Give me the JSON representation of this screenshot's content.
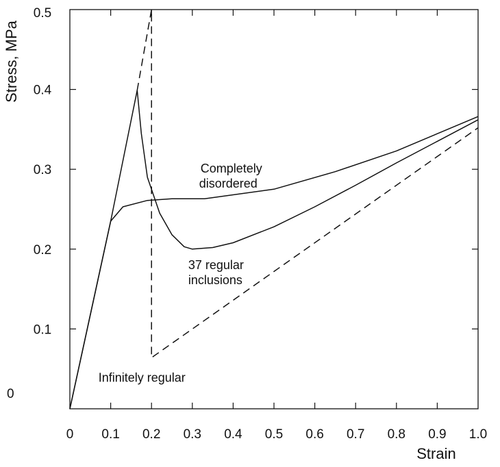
{
  "chart_data": {
    "type": "line",
    "xlabel": "Strain",
    "ylabel": "Stress, MPa",
    "xlim": [
      0,
      1.0
    ],
    "ylim": [
      0,
      0.5
    ],
    "x_ticks": [
      "0",
      "0.1",
      "0.2",
      "0.3",
      "0.4",
      "0.5",
      "0.6",
      "0.7",
      "0.8",
      "0.9",
      "1.0"
    ],
    "y_ticks": [
      "0",
      "0.1",
      "0.2",
      "0.3",
      "0.4",
      "0.5"
    ],
    "grid": false,
    "legend": "none",
    "series": [
      {
        "name": "Completely disordered",
        "style": "solid",
        "x": [
          0,
          0.1,
          0.13,
          0.19,
          0.25,
          0.33,
          0.5,
          0.65,
          0.8,
          1.0
        ],
        "y": [
          0,
          0.235,
          0.253,
          0.261,
          0.263,
          0.263,
          0.275,
          0.297,
          0.323,
          0.366
        ]
      },
      {
        "name": "37 regular inclusions",
        "style": "solid",
        "x": [
          0,
          0.1,
          0.165,
          0.175,
          0.19,
          0.22,
          0.25,
          0.28,
          0.3,
          0.35,
          0.4,
          0.5,
          0.6,
          0.7,
          0.8,
          0.9,
          1.0
        ],
        "y": [
          0,
          0.235,
          0.399,
          0.345,
          0.29,
          0.245,
          0.218,
          0.203,
          0.2,
          0.202,
          0.208,
          0.228,
          0.253,
          0.28,
          0.308,
          0.335,
          0.362
        ]
      },
      {
        "name": "Infinitely regular",
        "style": "dashed",
        "x": [
          0.165,
          0.2,
          0.2,
          1.0
        ],
        "y": [
          0.399,
          0.5,
          0.064,
          0.352
        ]
      }
    ],
    "annotations": [
      {
        "id": "completely-disordered",
        "lines": [
          "Completely",
          "disordered"
        ],
        "x": 0.32,
        "y": 0.296
      },
      {
        "id": "37-regular-inclusions",
        "lines": [
          "37 regular",
          "inclusions"
        ],
        "x": 0.29,
        "y": 0.175
      },
      {
        "id": "infinitely-regular",
        "lines": [
          "Infinitely  regular"
        ],
        "x": 0.07,
        "y": 0.034
      }
    ]
  }
}
